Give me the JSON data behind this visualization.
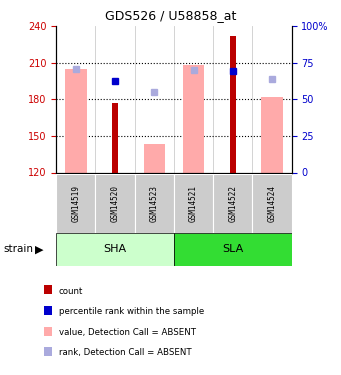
{
  "title": "GDS526 / U58858_at",
  "samples": [
    "GSM14519",
    "GSM14520",
    "GSM14523",
    "GSM14521",
    "GSM14522",
    "GSM14524"
  ],
  "ylim_left": [
    120,
    240
  ],
  "ylim_right": [
    0,
    100
  ],
  "yticks_left": [
    120,
    150,
    180,
    210,
    240
  ],
  "yticks_right": [
    0,
    25,
    50,
    75,
    100
  ],
  "red_bars": {
    "GSM14519": null,
    "GSM14520": 177,
    "GSM14523": null,
    "GSM14521": null,
    "GSM14522": 232,
    "GSM14524": null
  },
  "pink_bars": {
    "GSM14519": 205,
    "GSM14520": 120,
    "GSM14523": 143,
    "GSM14521": 208,
    "GSM14522": 120,
    "GSM14524": 182
  },
  "blue_squares": {
    "GSM14519": null,
    "GSM14520": 195,
    "GSM14523": null,
    "GSM14521": null,
    "GSM14522": 203,
    "GSM14524": null
  },
  "light_blue_squares": {
    "GSM14519": 205,
    "GSM14520": null,
    "GSM14523": 186,
    "GSM14521": 204,
    "GSM14522": null,
    "GSM14524": 197
  },
  "bar_bottom": 120,
  "red_color": "#BB0000",
  "pink_color": "#FFAAAA",
  "blue_color": "#0000CC",
  "light_blue_color": "#AAAADD",
  "sha_color": "#CCFFCC",
  "sla_color": "#33DD33",
  "tick_label_color_left": "#CC0000",
  "tick_label_color_right": "#0000CC",
  "dotted_lines": [
    150,
    180,
    210
  ],
  "legend_items": [
    [
      "#BB0000",
      "count"
    ],
    [
      "#0000CC",
      "percentile rank within the sample"
    ],
    [
      "#FFAAAA",
      "value, Detection Call = ABSENT"
    ],
    [
      "#AAAADD",
      "rank, Detection Call = ABSENT"
    ]
  ]
}
